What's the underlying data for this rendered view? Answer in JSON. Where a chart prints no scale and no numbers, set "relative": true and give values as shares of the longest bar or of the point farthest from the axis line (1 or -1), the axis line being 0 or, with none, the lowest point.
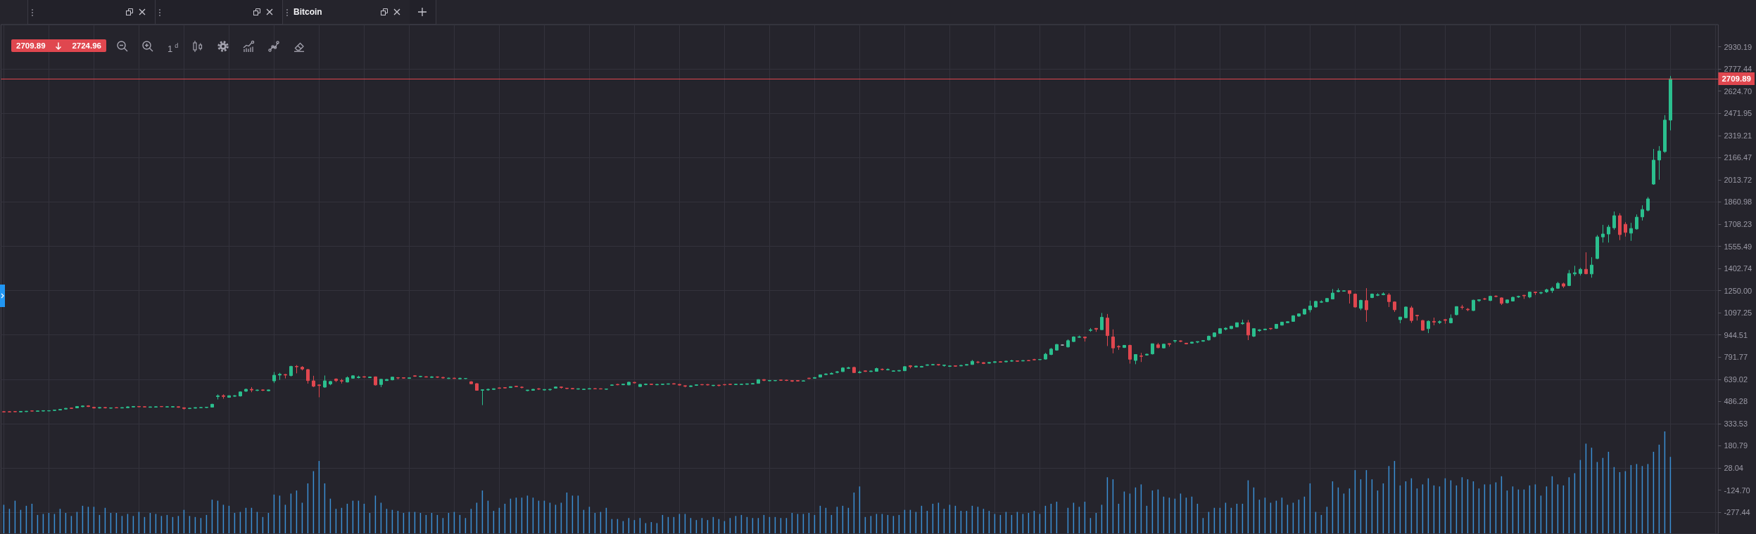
{
  "chart_data": [
    {
      "type": "candlestick",
      "title": "Bitcoin",
      "annotations": [
        "2709.89",
        "2724.96",
        "1$^{d}$"
      ],
      "categories": [
        null,
        null,
        null,
        null,
        null,
        null,
        null,
        null,
        null,
        null,
        null,
        null,
        null,
        null,
        null,
        null,
        null,
        null,
        null,
        null,
        null,
        null,
        null,
        null,
        null,
        null,
        null,
        null,
        null,
        null,
        null,
        null,
        null,
        null,
        null,
        null,
        null,
        null,
        null,
        null,
        null,
        null,
        null,
        null,
        null,
        null,
        null,
        null,
        null,
        null,
        null,
        null,
        null,
        null,
        null,
        null,
        null,
        null,
        null,
        null,
        null,
        null,
        null,
        null,
        null,
        null,
        null,
        null,
        null,
        null,
        null,
        null,
        null,
        null,
        null,
        null,
        null,
        null,
        null,
        null,
        null,
        null,
        null,
        null,
        null,
        null,
        null,
        null,
        null,
        null,
        null,
        null,
        null,
        null,
        null,
        null,
        null,
        null,
        null,
        null,
        null,
        null,
        null,
        null,
        null,
        null,
        null,
        null,
        null,
        null,
        null,
        null,
        null,
        null,
        null,
        null,
        null,
        null,
        null,
        null,
        null,
        null,
        null,
        null,
        null,
        null,
        null,
        null,
        null,
        null,
        null,
        null,
        null,
        null,
        null,
        null,
        null,
        null,
        null,
        null,
        null,
        null,
        null,
        null,
        null,
        null,
        null,
        null,
        null,
        null,
        null,
        null,
        null,
        null,
        null,
        null,
        null,
        null,
        null,
        null,
        null,
        null,
        null,
        null,
        null,
        null,
        null,
        null,
        null,
        null,
        null,
        null,
        null,
        null,
        null,
        null,
        null,
        null,
        null,
        null,
        null,
        null,
        null,
        null,
        null,
        null,
        null,
        null,
        null,
        null,
        null,
        null,
        null,
        null,
        null,
        null,
        null,
        null,
        null,
        null,
        null,
        null,
        null,
        null,
        null,
        null,
        null,
        null,
        null,
        null,
        null,
        null,
        null,
        null,
        null,
        null,
        null,
        null,
        null,
        null,
        null,
        null,
        null,
        null,
        null,
        null,
        null,
        null,
        null,
        null,
        null,
        null,
        null,
        null,
        null,
        null,
        null,
        null,
        null,
        null,
        null,
        null,
        null,
        null,
        null,
        null,
        null,
        null,
        null,
        null,
        null,
        null,
        null,
        null,
        null,
        null,
        null,
        null,
        null,
        null,
        null,
        null,
        null,
        null,
        null,
        null,
        null,
        null,
        null,
        null,
        null,
        null,
        null,
        null,
        null,
        null,
        null,
        null,
        null,
        null,
        null,
        null,
        null,
        null,
        null,
        null,
        null,
        null,
        null,
        null,
        null,
        null,
        null,
        null,
        null,
        null,
        null,
        null,
        null,
        null,
        null,
        null,
        null,
        null,
        null
      ],
      "ohlc": [
        [
          416,
          418,
          412,
          414
        ],
        [
          416,
          418,
          413,
          414
        ],
        [
          417,
          418,
          414,
          415
        ],
        [
          414,
          420,
          412,
          418
        ],
        [
          416,
          421,
          414,
          419
        ],
        [
          421,
          423,
          418,
          420
        ],
        [
          418,
          422,
          417,
          421
        ],
        [
          420,
          425,
          418,
          423
        ],
        [
          421,
          424,
          419,
          423
        ],
        [
          424,
          428,
          422,
          427
        ],
        [
          427,
          434,
          425,
          432
        ],
        [
          434,
          441,
          432,
          439
        ],
        [
          441,
          444,
          436,
          438
        ],
        [
          442,
          453,
          440,
          452
        ],
        [
          450,
          459,
          447,
          455
        ],
        [
          456,
          460,
          448,
          451
        ],
        [
          446,
          450,
          438,
          441
        ],
        [
          441,
          448,
          438,
          445
        ],
        [
          445,
          448,
          438,
          442
        ],
        [
          440,
          445,
          437,
          442
        ],
        [
          444,
          446,
          441,
          442
        ],
        [
          441,
          446,
          439,
          444
        ],
        [
          443,
          452,
          441,
          449
        ],
        [
          448,
          454,
          446,
          452
        ],
        [
          452,
          454,
          447,
          449
        ],
        [
          450,
          452,
          447,
          448
        ],
        [
          446,
          450,
          444,
          449
        ],
        [
          447,
          452,
          445,
          450
        ],
        [
          452,
          454,
          449,
          450
        ],
        [
          448,
          452,
          446,
          450
        ],
        [
          448,
          453,
          446,
          451
        ],
        [
          450,
          452,
          443,
          446
        ],
        [
          443,
          445,
          430,
          438
        ],
        [
          437,
          441,
          434,
          440
        ],
        [
          440,
          446,
          438,
          444
        ],
        [
          443,
          447,
          441,
          445
        ],
        [
          444,
          449,
          442,
          447
        ],
        [
          447,
          470,
          445,
          467
        ],
        [
          520,
          535,
          500,
          525
        ],
        [
          526,
          535,
          505,
          521
        ],
        [
          515,
          528,
          512,
          526
        ],
        [
          522,
          530,
          518,
          526
        ],
        [
          524,
          556,
          520,
          552
        ],
        [
          557,
          575,
          552,
          570
        ],
        [
          570,
          585,
          550,
          565
        ],
        [
          562,
          568,
          558,
          565
        ],
        [
          566,
          570,
          558,
          563
        ],
        [
          560,
          568,
          557,
          566
        ],
        [
          628,
          689,
          613,
          667
        ],
        [
          668,
          684,
          635,
          674
        ],
        [
          672,
          676,
          645,
          668
        ],
        [
          665,
          732,
          658,
          728
        ],
        [
          728,
          737,
          680,
          725
        ],
        [
          722,
          730,
          700,
          710
        ],
        [
          706,
          710,
          609,
          630
        ],
        [
          628,
          663,
          585,
          591
        ],
        [
          600,
          604,
          515,
          596
        ],
        [
          585,
          665,
          581,
          628
        ],
        [
          607,
          628,
          598,
          624
        ],
        [
          641,
          645,
          620,
          630
        ],
        [
          630,
          642,
          610,
          626
        ],
        [
          620,
          659,
          617,
          650
        ],
        [
          646,
          667,
          643,
          663
        ],
        [
          650,
          664,
          645,
          655
        ],
        [
          657,
          660,
          650,
          654
        ],
        [
          650,
          658,
          648,
          655
        ],
        [
          656,
          658,
          596,
          600
        ],
        [
          603,
          641,
          585,
          639
        ],
        [
          630,
          640,
          628,
          638
        ],
        [
          635,
          656,
          632,
          654
        ],
        [
          650,
          654,
          639,
          648
        ],
        [
          650,
          652,
          645,
          647
        ],
        [
          645,
          652,
          642,
          649
        ],
        [
          663,
          666,
          656,
          660
        ],
        [
          657,
          663,
          654,
          660
        ],
        [
          657,
          659,
          652,
          654
        ],
        [
          652,
          660,
          650,
          656
        ],
        [
          656,
          659,
          648,
          653
        ],
        [
          652,
          656,
          644,
          648
        ],
        [
          644,
          650,
          642,
          647
        ],
        [
          647,
          650,
          642,
          644
        ],
        [
          642,
          650,
          640,
          646
        ],
        [
          644,
          647,
          641,
          645
        ],
        [
          622,
          626,
          606,
          608
        ],
        [
          609,
          612,
          561,
          563
        ],
        [
          563,
          570,
          461,
          567
        ],
        [
          566,
          575,
          560,
          570
        ],
        [
          569,
          576,
          566,
          574
        ],
        [
          580,
          582,
          574,
          577
        ],
        [
          582,
          584,
          578,
          579
        ],
        [
          582,
          590,
          580,
          588
        ],
        [
          591,
          594,
          586,
          588
        ],
        [
          585,
          590,
          576,
          583
        ],
        [
          561,
          566,
          557,
          565
        ],
        [
          563,
          572,
          561,
          570
        ],
        [
          574,
          578,
          566,
          571
        ],
        [
          565,
          570,
          562,
          569
        ],
        [
          567,
          573,
          560,
          570
        ],
        [
          578,
          589,
          575,
          586
        ],
        [
          586,
          589,
          575,
          582
        ],
        [
          578,
          580,
          572,
          575
        ],
        [
          576,
          578,
          570,
          573
        ],
        [
          571,
          576,
          569,
          574
        ],
        [
          568,
          573,
          566,
          571
        ],
        [
          572,
          577,
          570,
          575
        ],
        [
          575,
          577,
          571,
          573
        ],
        [
          574,
          576,
          570,
          572
        ],
        [
          570,
          574,
          568,
          572
        ],
        [
          597,
          603,
          594,
          600
        ],
        [
          604,
          607,
          598,
          601
        ],
        [
          601,
          608,
          599,
          606
        ],
        [
          600,
          622,
          598,
          619
        ],
        [
          618,
          620,
          611,
          614
        ],
        [
          589,
          606,
          587,
          604
        ],
        [
          602,
          610,
          598,
          606
        ],
        [
          606,
          608,
          600,
          603
        ],
        [
          601,
          606,
          598,
          604
        ],
        [
          603,
          607,
          600,
          606
        ],
        [
          605,
          610,
          603,
          608
        ],
        [
          609,
          611,
          603,
          606
        ],
        [
          604,
          606,
          596,
          599
        ],
        [
          595,
          597,
          584,
          591
        ],
        [
          589,
          597,
          586,
          594
        ],
        [
          597,
          603,
          594,
          601
        ],
        [
          603,
          605,
          598,
          601
        ],
        [
          603,
          606,
          597,
          600
        ],
        [
          595,
          600,
          592,
          598
        ],
        [
          599,
          601,
          590,
          596
        ],
        [
          603,
          605,
          597,
          601
        ],
        [
          605,
          607,
          600,
          603
        ],
        [
          602,
          607,
          600,
          605
        ],
        [
          603,
          607,
          601,
          605
        ],
        [
          604,
          610,
          603,
          608
        ],
        [
          606,
          612,
          604,
          610
        ],
        [
          611,
          639,
          609,
          637
        ],
        [
          637,
          639,
          626,
          632
        ],
        [
          628,
          634,
          626,
          631
        ],
        [
          629,
          633,
          627,
          631
        ],
        [
          634,
          636,
          628,
          632
        ],
        [
          633,
          636,
          627,
          631
        ],
        [
          630,
          632,
          621,
          626
        ],
        [
          631,
          633,
          624,
          627
        ],
        [
          626,
          631,
          624,
          629
        ],
        [
          647,
          649,
          640,
          644
        ],
        [
          646,
          654,
          644,
          651
        ],
        [
          654,
          672,
          652,
          670
        ],
        [
          671,
          680,
          668,
          676
        ],
        [
          675,
          686,
          672,
          680
        ],
        [
          686,
          696,
          680,
          691
        ],
        [
          692,
          722,
          690,
          717
        ],
        [
          714,
          725,
          710,
          719
        ],
        [
          721,
          726,
          683,
          685
        ],
        [
          685,
          698,
          680,
          689
        ],
        [
          697,
          699,
          690,
          693
        ],
        [
          692,
          699,
          690,
          696
        ],
        [
          694,
          719,
          692,
          713
        ],
        [
          708,
          714,
          700,
          706
        ],
        [
          704,
          714,
          700,
          707
        ],
        [
          694,
          700,
          692,
          697
        ],
        [
          696,
          702,
          694,
          700
        ],
        [
          698,
          730,
          696,
          726
        ],
        [
          732,
          736,
          714,
          726
        ],
        [
          724,
          732,
          722,
          730
        ],
        [
          723,
          731,
          720,
          728
        ],
        [
          735,
          742,
          733,
          739
        ],
        [
          738,
          745,
          735,
          741
        ],
        [
          741,
          743,
          733,
          738
        ],
        [
          734,
          740,
          726,
          737
        ],
        [
          728,
          734,
          724,
          731
        ],
        [
          732,
          734,
          726,
          729
        ],
        [
          731,
          738,
          729,
          735
        ],
        [
          736,
          744,
          734,
          741
        ],
        [
          741,
          772,
          739,
          763
        ],
        [
          758,
          765,
          748,
          756
        ],
        [
          754,
          756,
          744,
          748
        ],
        [
          750,
          757,
          747,
          755
        ],
        [
          755,
          764,
          752,
          760
        ],
        [
          760,
          762,
          754,
          757
        ],
        [
          759,
          766,
          757,
          764
        ],
        [
          764,
          773,
          760,
          767
        ],
        [
          766,
          768,
          760,
          763
        ],
        [
          765,
          771,
          763,
          768
        ],
        [
          769,
          771,
          764,
          767
        ],
        [
          775,
          780,
          769,
          773
        ],
        [
          774,
          777,
          773,
          776
        ],
        [
          778,
          821,
          775,
          812
        ],
        [
          810,
          855,
          805,
          847
        ],
        [
          840,
          882,
          836,
          879
        ],
        [
          875,
          876,
          874,
          875
        ],
        [
          862,
          914,
          858,
          905
        ],
        [
          899,
          935,
          896,
          931
        ],
        [
          928,
          940,
          925,
          932
        ],
        [
          930,
          932,
          899,
          924
        ],
        [
          976,
          992,
          966,
          980
        ],
        [
          990,
          992,
          966,
          984
        ],
        [
          981,
          1096,
          979,
          1066
        ],
        [
          1061,
          1089,
          868,
          940
        ],
        [
          931,
          983,
          818,
          855
        ],
        [
          866,
          873,
          842,
          862
        ],
        [
          858,
          875,
          855,
          873
        ],
        [
          873,
          877,
          747,
          777
        ],
        [
          769,
          812,
          743,
          810
        ],
        [
          800,
          821,
          758,
          797
        ],
        [
          806,
          815,
          802,
          812
        ],
        [
          814,
          885,
          810,
          884
        ],
        [
          877,
          890,
          853,
          857
        ],
        [
          855,
          883,
          853,
          881
        ],
        [
          885,
          886,
          864,
          880
        ],
        [
          903,
          907,
          890,
          906
        ],
        [
          904,
          907,
          895,
          900
        ],
        [
          888,
          890,
          880,
          883
        ],
        [
          888,
          897,
          884,
          895
        ],
        [
          895,
          900,
          888,
          899
        ],
        [
          901,
          908,
          898,
          906
        ],
        [
          910,
          940,
          906,
          936
        ],
        [
          933,
          962,
          929,
          959
        ],
        [
          955,
          990,
          952,
          988
        ],
        [
          984,
          997,
          976,
          991
        ],
        [
          988,
          1006,
          985,
          1005
        ],
        [
          1000,
          1030,
          997,
          1029
        ],
        [
          1022,
          1050,
          1015,
          1027
        ],
        [
          1029,
          1048,
          909,
          944
        ],
        [
          936,
          990,
          930,
          988
        ],
        [
          974,
          984,
          967,
          980
        ],
        [
          980,
          988,
          977,
          985
        ],
        [
          990,
          992,
          980,
          987
        ],
        [
          990,
          1020,
          986,
          1018
        ],
        [
          1012,
          1035,
          1010,
          1033
        ],
        [
          1029,
          1038,
          1026,
          1036
        ],
        [
          1038,
          1080,
          1035,
          1077
        ],
        [
          1074,
          1092,
          1070,
          1090
        ],
        [
          1088,
          1124,
          1085,
          1122
        ],
        [
          1118,
          1181,
          1100,
          1144
        ],
        [
          1137,
          1180,
          1133,
          1176
        ],
        [
          1170,
          1183,
          1165,
          1174
        ],
        [
          1174,
          1198,
          1170,
          1196
        ],
        [
          1192,
          1261,
          1190,
          1233
        ],
        [
          1243,
          1265,
          1238,
          1250
        ],
        [
          1246,
          1250,
          1245,
          1249
        ],
        [
          1250,
          1252,
          1161,
          1230
        ],
        [
          1226,
          1230,
          1133,
          1137
        ],
        [
          1128,
          1187,
          1115,
          1183
        ],
        [
          1181,
          1267,
          1035,
          1118
        ],
        [
          1202,
          1230,
          1198,
          1226
        ],
        [
          1218,
          1232,
          1212,
          1222
        ],
        [
          1222,
          1238,
          1218,
          1228
        ],
        [
          1220,
          1233,
          1137,
          1174
        ],
        [
          1172,
          1176,
          1103,
          1118
        ],
        [
          1050,
          1068,
          1025,
          1068
        ],
        [
          1063,
          1140,
          1060,
          1137
        ],
        [
          1131,
          1144,
          1028,
          1044
        ],
        [
          1080,
          1082,
          1044,
          1076
        ],
        [
          1044,
          1048,
          975,
          977
        ],
        [
          988,
          1045,
          957,
          1039
        ],
        [
          1038,
          1064,
          1011,
          1033
        ],
        [
          1030,
          1045,
          1020,
          1036
        ],
        [
          1050,
          1055,
          1022,
          1045
        ],
        [
          1028,
          1086,
          1024,
          1059
        ],
        [
          1084,
          1142,
          1080,
          1140
        ],
        [
          1137,
          1152,
          1120,
          1134
        ],
        [
          1122,
          1130,
          1108,
          1118
        ],
        [
          1113,
          1187,
          1110,
          1184
        ],
        [
          1181,
          1188,
          1173,
          1187
        ],
        [
          1194,
          1200,
          1185,
          1191
        ],
        [
          1182,
          1215,
          1178,
          1211
        ],
        [
          1212,
          1218,
          1204,
          1209
        ],
        [
          1200,
          1203,
          1151,
          1162
        ],
        [
          1166,
          1188,
          1162,
          1186
        ],
        [
          1178,
          1208,
          1175,
          1204
        ],
        [
          1206,
          1215,
          1200,
          1210
        ],
        [
          1218,
          1220,
          1193,
          1214
        ],
        [
          1206,
          1242,
          1198,
          1240
        ],
        [
          1240,
          1242,
          1220,
          1236
        ],
        [
          1233,
          1242,
          1225,
          1237
        ],
        [
          1242,
          1263,
          1234,
          1256
        ],
        [
          1250,
          1277,
          1234,
          1266
        ],
        [
          1266,
          1310,
          1262,
          1300
        ],
        [
          1297,
          1305,
          1268,
          1281
        ],
        [
          1285,
          1392,
          1281,
          1368
        ],
        [
          1365,
          1421,
          1350,
          1373
        ],
        [
          1368,
          1407,
          1354,
          1397
        ],
        [
          1397,
          1514,
          1363,
          1366
        ],
        [
          1365,
          1480,
          1339,
          1426
        ],
        [
          1471,
          1633,
          1467,
          1620
        ],
        [
          1620,
          1703,
          1581,
          1640
        ],
        [
          1640,
          1703,
          1581,
          1688
        ],
        [
          1683,
          1795,
          1669,
          1766
        ],
        [
          1766,
          1783,
          1598,
          1636
        ],
        [
          1707,
          1722,
          1622,
          1651
        ],
        [
          1646,
          1717,
          1593,
          1678
        ],
        [
          1675,
          1775,
          1670,
          1756
        ],
        [
          1758,
          1838,
          1733,
          1809
        ],
        [
          1804,
          1895,
          1796,
          1882
        ],
        [
          1984,
          2226,
          1979,
          2149
        ],
        [
          2150,
          2246,
          2014,
          2212
        ],
        [
          2208,
          2459,
          2199,
          2425
        ],
        [
          2425,
          2729,
          2354,
          2710
        ],
        null,
        null,
        null,
        null,
        null,
        null,
        null,
        null
      ],
      "ylim": [
        -427,
        3083
      ],
      "yticks": [
        -277.44,
        {
          "value": -124.7,
          "label": "-124.70"
        },
        28.04,
        180.79,
        333.53,
        486.28,
        639.02,
        791.77,
        944.51,
        1097.25,
        {
          "value": 1250,
          "label": "1250.00"
        },
        1402.74,
        1555.49,
        1708.23,
        1860.98,
        2013.72,
        2166.47,
        2319.21,
        2471.95,
        {
          "value": 2624.7,
          "label": "2624.70"
        },
        2777.44,
        2930.19
      ],
      "grid": true,
      "tick_labels": "y",
      "ref_lines": [
        {
          "axis": "y",
          "value": 2709.89,
          "label": "2709.89",
          "color": "#e0474f"
        }
      ]
    },
    {
      "type": "bar",
      "relative": true,
      "tick_labels": false,
      "color": "#3b8fd4",
      "categories": [
        null,
        null,
        null,
        null,
        null,
        null,
        null,
        null,
        null,
        null,
        null,
        null,
        null,
        null,
        null,
        null,
        null,
        null,
        null,
        null,
        null,
        null,
        null,
        null,
        null,
        null,
        null,
        null,
        null,
        null,
        null,
        null,
        null,
        null,
        null,
        null,
        null,
        null,
        null,
        null,
        null,
        null,
        null,
        null,
        null,
        null,
        null,
        null,
        null,
        null,
        null,
        null,
        null,
        null,
        null,
        null,
        null,
        null,
        null,
        null,
        null,
        null,
        null,
        null,
        null,
        null,
        null,
        null,
        null,
        null,
        null,
        null,
        null,
        null,
        null,
        null,
        null,
        null,
        null,
        null,
        null,
        null,
        null,
        null,
        null,
        null,
        null,
        null,
        null,
        null,
        null,
        null,
        null,
        null,
        null,
        null,
        null,
        null,
        null,
        null,
        null,
        null,
        null,
        null,
        null,
        null,
        null,
        null,
        null,
        null,
        null,
        null,
        null,
        null,
        null,
        null,
        null,
        null,
        null,
        null,
        null,
        null,
        null,
        null,
        null,
        null,
        null,
        null,
        null,
        null,
        null,
        null,
        null,
        null,
        null,
        null,
        null,
        null,
        null,
        null,
        null,
        null,
        null,
        null,
        null,
        null,
        null,
        null,
        null,
        null,
        null,
        null,
        null,
        null,
        null,
        null,
        null,
        null,
        null,
        null,
        null,
        null,
        null,
        null,
        null,
        null,
        null,
        null,
        null,
        null,
        null,
        null,
        null,
        null,
        null,
        null,
        null,
        null,
        null,
        null,
        null,
        null,
        null,
        null,
        null,
        null,
        null,
        null,
        null,
        null,
        null,
        null,
        null,
        null,
        null,
        null,
        null,
        null,
        null,
        null,
        null,
        null,
        null,
        null,
        null,
        null,
        null,
        null,
        null,
        null,
        null,
        null,
        null,
        null,
        null,
        null,
        null,
        null,
        null,
        null,
        null,
        null,
        null,
        null,
        null,
        null,
        null,
        null,
        null,
        null,
        null,
        null,
        null,
        null,
        null,
        null,
        null,
        null,
        null,
        null,
        null,
        null,
        null,
        null,
        null,
        null,
        null,
        null,
        null,
        null,
        null,
        null,
        null,
        null,
        null,
        null,
        null,
        null,
        null,
        null,
        null,
        null,
        null,
        null,
        null,
        null,
        null,
        null,
        null,
        null,
        null,
        null,
        null,
        null,
        null,
        null,
        null,
        null,
        null,
        null,
        null,
        null,
        null,
        null,
        null,
        null,
        null,
        null,
        null,
        null,
        null,
        null,
        null,
        null,
        null,
        null,
        null,
        null,
        null,
        null,
        null,
        null,
        null,
        null,
        null
      ],
      "values": [
        0.28,
        0.24,
        0.32,
        0.23,
        0.27,
        0.29,
        0.18,
        0.19,
        0.2,
        0.19,
        0.24,
        0.2,
        0.17,
        0.21,
        0.27,
        0.26,
        0.26,
        0.18,
        0.25,
        0.2,
        0.2,
        0.17,
        0.19,
        0.17,
        0.21,
        0.16,
        0.2,
        0.19,
        0.17,
        0.18,
        0.16,
        0.17,
        0.23,
        0.17,
        0.16,
        0.15,
        0.18,
        0.33,
        0.32,
        0.28,
        0.27,
        0.2,
        0.21,
        0.25,
        0.25,
        0.21,
        0.16,
        0.2,
        0.38,
        0.37,
        0.28,
        0.39,
        0.42,
        0.3,
        0.49,
        0.61,
        0.71,
        0.49,
        0.34,
        0.24,
        0.25,
        0.29,
        0.32,
        0.32,
        0.29,
        0.2,
        0.37,
        0.3,
        0.24,
        0.23,
        0.22,
        0.2,
        0.21,
        0.21,
        0.2,
        0.18,
        0.2,
        0.18,
        0.15,
        0.2,
        0.21,
        0.18,
        0.15,
        0.24,
        0.3,
        0.42,
        0.32,
        0.22,
        0.25,
        0.29,
        0.34,
        0.35,
        0.35,
        0.37,
        0.35,
        0.32,
        0.32,
        0.3,
        0.28,
        0.3,
        0.4,
        0.37,
        0.37,
        0.23,
        0.26,
        0.2,
        0.21,
        0.25,
        0.14,
        0.14,
        0.12,
        0.15,
        0.13,
        0.15,
        0.1,
        0.11,
        0.1,
        0.18,
        0.16,
        0.16,
        0.19,
        0.19,
        0.15,
        0.13,
        0.15,
        0.13,
        0.16,
        0.14,
        0.12,
        0.15,
        0.17,
        0.18,
        0.16,
        0.15,
        0.15,
        0.18,
        0.16,
        0.16,
        0.15,
        0.15,
        0.2,
        0.19,
        0.19,
        0.2,
        0.18,
        0.27,
        0.25,
        0.18,
        0.26,
        0.27,
        0.25,
        0.4,
        0.46,
        0.16,
        0.17,
        0.19,
        0.19,
        0.18,
        0.17,
        0.18,
        0.23,
        0.23,
        0.21,
        0.27,
        0.22,
        0.29,
        0.3,
        0.24,
        0.28,
        0.27,
        0.22,
        0.22,
        0.27,
        0.26,
        0.24,
        0.22,
        0.19,
        0.18,
        0.21,
        0.18,
        0.21,
        0.19,
        0.2,
        0.22,
        0.19,
        0.27,
        0.29,
        0.31,
        null,
        0.25,
        0.3,
        0.26,
        0.31,
        0.15,
        0.2,
        0.28,
        0.55,
        0.53,
        0.29,
        0.41,
        0.39,
        0.45,
        0.48,
        0.27,
        0.42,
        0.43,
        0.36,
        0.35,
        0.34,
        0.39,
        0.35,
        0.36,
        0.29,
        0.15,
        0.21,
        0.25,
        0.25,
        0.3,
        0.25,
        0.29,
        0.29,
        0.52,
        0.45,
        0.33,
        0.35,
        0.3,
        0.32,
        0.35,
        0.28,
        0.3,
        0.33,
        0.36,
        0.49,
        0.21,
        0.18,
        0.26,
        0.51,
        0.45,
        0.39,
        0.44,
        0.62,
        0.53,
        0.62,
        0.53,
        0.42,
        0.49,
        0.66,
        0.71,
        0.47,
        0.51,
        0.54,
        0.44,
        0.48,
        0.54,
        0.47,
        0.46,
        0.54,
        0.52,
        0.47,
        0.55,
        0.53,
        0.51,
        0.44,
        0.48,
        0.48,
        0.5,
        0.56,
        0.42,
        0.46,
        0.43,
        0.43,
        0.47,
        0.48,
        0.37,
        0.46,
        0.56,
        0.48,
        0.47,
        0.55,
        0.59,
        0.72,
        0.88,
        0.84,
        0.7,
        0.74,
        0.8,
        0.65,
        0.6,
        0.61,
        0.67,
        0.68,
        0.66,
        0.68,
        0.8,
        0.87,
        1,
        0.75,
        null,
        null,
        null,
        null,
        null,
        null,
        null,
        null
      ]
    }
  ]
}
